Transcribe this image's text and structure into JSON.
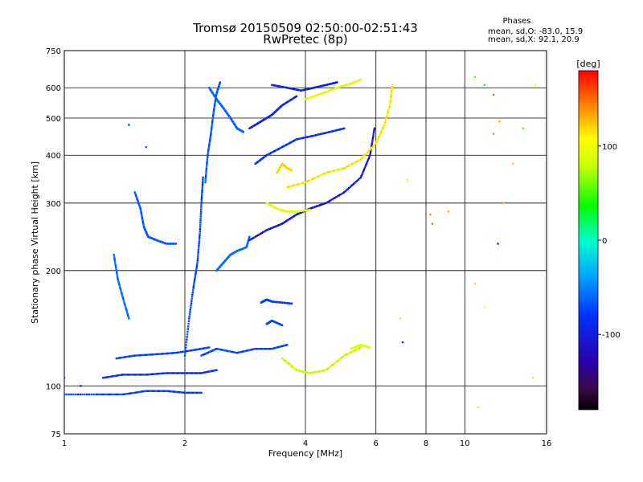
{
  "chart_data": {
    "type": "scatter",
    "title": "Tromsø 20150509 02:50:00-02:51:43",
    "subtitle": "RwPretec (8p)",
    "stats_header": "Phases",
    "stats_o": "mean, sd,O: -83.0, 15.9",
    "stats_x": "mean, sd,X:  92.1, 20.9",
    "xlabel": "Frequency [MHz]",
    "ylabel": "Stationary phase Virtual Height [km]",
    "xscale": "log",
    "yscale": "log",
    "xlim": [
      1,
      16
    ],
    "ylim": [
      75,
      750
    ],
    "xticks": [
      1,
      2,
      4,
      6,
      8,
      10,
      16
    ],
    "xtick_labels": [
      "1",
      "2",
      "4",
      "6",
      "8",
      "10",
      "16"
    ],
    "yticks": [
      75,
      100,
      200,
      300,
      400,
      500,
      600,
      750
    ],
    "ytick_labels": [
      "75",
      "100",
      "200",
      "300",
      "400",
      "500",
      "600",
      "750"
    ],
    "xgrid": [
      2,
      4,
      6,
      8,
      10
    ],
    "ygrid": [
      100,
      200,
      300,
      400,
      500,
      600
    ],
    "colorbar": {
      "label": "[deg]",
      "range": [
        -180,
        180
      ],
      "ticks": [
        100,
        0,
        -100
      ],
      "tick_labels": [
        "100",
        "0",
        "-100"
      ]
    },
    "traces": [
      {
        "x": [
          1.0,
          1.2,
          1.4,
          1.6,
          1.8,
          2.0,
          2.2
        ],
        "y": [
          95,
          95,
          95,
          97,
          97,
          96,
          96
        ],
        "phase": -95
      },
      {
        "x": [
          1.25,
          1.4,
          1.6,
          1.8,
          2.0,
          2.2,
          2.4
        ],
        "y": [
          105,
          107,
          107,
          108,
          108,
          108,
          110
        ],
        "phase": -100
      },
      {
        "x": [
          1.35,
          1.5,
          1.7,
          1.9,
          2.1,
          2.3
        ],
        "y": [
          118,
          120,
          121,
          122,
          124,
          126
        ],
        "phase": -90
      },
      {
        "x": [
          2.2,
          2.4,
          2.7,
          3.0,
          3.3,
          3.6
        ],
        "y": [
          120,
          125,
          122,
          125,
          125,
          128
        ],
        "phase": -90
      },
      {
        "x": [
          3.5,
          3.8,
          4.1,
          4.5,
          5.0,
          5.5
        ],
        "y": [
          118,
          110,
          108,
          110,
          120,
          126
        ],
        "phase": 85
      },
      {
        "x": [
          5.2,
          5.5,
          5.8
        ],
        "y": [
          125,
          128,
          126
        ],
        "phase": 95
      },
      {
        "x": [
          1.33,
          1.36,
          1.4,
          1.45
        ],
        "y": [
          220,
          190,
          170,
          150
        ],
        "phase": -70
      },
      {
        "x": [
          1.5,
          1.55,
          1.58,
          1.62,
          1.7,
          1.8,
          1.9
        ],
        "y": [
          320,
          290,
          260,
          245,
          240,
          235,
          235
        ],
        "phase": -80
      },
      {
        "x": [
          2.0,
          2.05,
          2.1,
          2.15,
          2.18,
          2.2,
          2.22
        ],
        "y": [
          120,
          150,
          180,
          210,
          250,
          300,
          350
        ],
        "phase": -90
      },
      {
        "x": [
          2.25,
          2.28,
          2.32,
          2.36,
          2.4,
          2.45
        ],
        "y": [
          340,
          400,
          450,
          520,
          580,
          620
        ],
        "phase": -80
      },
      {
        "x": [
          2.3,
          2.4,
          2.5,
          2.6,
          2.7,
          2.8
        ],
        "y": [
          600,
          560,
          530,
          500,
          470,
          460
        ],
        "phase": -75
      },
      {
        "x": [
          2.4,
          2.5,
          2.6,
          2.7,
          2.85,
          2.9
        ],
        "y": [
          200,
          210,
          220,
          225,
          230,
          245
        ],
        "phase": -70
      },
      {
        "x": [
          2.9,
          3.1,
          3.3,
          3.5,
          3.8
        ],
        "y": [
          470,
          490,
          510,
          540,
          570
        ],
        "phase": -110
      },
      {
        "x": [
          3.3,
          3.6,
          3.9,
          4.2,
          4.5,
          4.8
        ],
        "y": [
          610,
          600,
          590,
          600,
          610,
          620
        ],
        "phase": -110
      },
      {
        "x": [
          4.0,
          4.3,
          4.6,
          4.9,
          5.2,
          5.5
        ],
        "y": [
          560,
          575,
          590,
          605,
          615,
          630
        ],
        "phase": 100
      },
      {
        "x": [
          2.9,
          3.2,
          3.5,
          3.8,
          4.1,
          4.5,
          5.0,
          5.5,
          5.8,
          5.95
        ],
        "y": [
          240,
          255,
          265,
          280,
          290,
          300,
          320,
          350,
          400,
          470
        ],
        "phase": -115
      },
      {
        "x": [
          3.2,
          3.4,
          3.6,
          3.8,
          4.1
        ],
        "y": [
          300,
          290,
          285,
          285,
          288
        ],
        "phase": 95
      },
      {
        "x": [
          3.6,
          4.0,
          4.5,
          5.0,
          5.5,
          6.0,
          6.3,
          6.5,
          6.6
        ],
        "y": [
          330,
          340,
          360,
          370,
          390,
          430,
          480,
          540,
          610
        ],
        "phase": 110
      },
      {
        "x": [
          3.0,
          3.2,
          3.5,
          3.8,
          4.2,
          4.6,
          5.0
        ],
        "y": [
          380,
          400,
          420,
          440,
          450,
          460,
          470
        ],
        "phase": -100
      },
      {
        "x": [
          3.4,
          3.5,
          3.6,
          3.7
        ],
        "y": [
          360,
          380,
          370,
          365
        ],
        "phase": 120
      },
      {
        "x": [
          3.1,
          3.2,
          3.3,
          3.5,
          3.7
        ],
        "y": [
          165,
          168,
          166,
          165,
          164
        ],
        "phase": -95
      },
      {
        "x": [
          3.2,
          3.3,
          3.5
        ],
        "y": [
          145,
          148,
          144
        ],
        "phase": -90
      }
    ],
    "scatter_points": [
      {
        "x": 1.45,
        "y": 480,
        "phase": -90
      },
      {
        "x": 1.6,
        "y": 420,
        "phase": -80
      },
      {
        "x": 10.6,
        "y": 640,
        "phase": 60
      },
      {
        "x": 11.2,
        "y": 610,
        "phase": 30
      },
      {
        "x": 11.8,
        "y": 575,
        "phase": 150
      },
      {
        "x": 12.2,
        "y": 490,
        "phase": 130
      },
      {
        "x": 11.8,
        "y": 455,
        "phase": 140
      },
      {
        "x": 14.0,
        "y": 470,
        "phase": 60
      },
      {
        "x": 13.2,
        "y": 380,
        "phase": 120
      },
      {
        "x": 12.1,
        "y": 235,
        "phase": -100
      },
      {
        "x": 9.1,
        "y": 285,
        "phase": 130
      },
      {
        "x": 8.2,
        "y": 280,
        "phase": 140
      },
      {
        "x": 8.3,
        "y": 265,
        "phase": 150
      },
      {
        "x": 10.6,
        "y": 185,
        "phase": 120
      },
      {
        "x": 11.2,
        "y": 160,
        "phase": 110
      },
      {
        "x": 7.0,
        "y": 130,
        "phase": -100
      },
      {
        "x": 7.2,
        "y": 345,
        "phase": 100
      },
      {
        "x": 10.8,
        "y": 88,
        "phase": 80
      },
      {
        "x": 14.8,
        "y": 105,
        "phase": 90
      },
      {
        "x": 12.5,
        "y": 300,
        "phase": 130
      },
      {
        "x": 15.0,
        "y": 610,
        "phase": 110
      },
      {
        "x": 6.9,
        "y": 150,
        "phase": 90
      },
      {
        "x": 1.1,
        "y": 100,
        "phase": -100
      },
      {
        "x": 1.0,
        "y": 105,
        "phase": -90
      }
    ]
  }
}
